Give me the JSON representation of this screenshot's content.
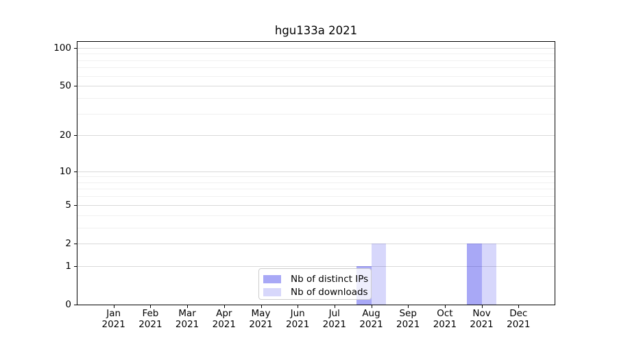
{
  "chart_data": {
    "type": "bar",
    "title": "hgu133a 2021",
    "months": [
      "Jan",
      "Feb",
      "Mar",
      "Apr",
      "May",
      "Jun",
      "Jul",
      "Aug",
      "Sep",
      "Oct",
      "Nov",
      "Dec"
    ],
    "year": "2021",
    "series": [
      {
        "name": "Nb of distinct IPs",
        "fill": "rgba(0,0,230,0.34)",
        "apparent_color": "#a8a8f7",
        "values": [
          0,
          0,
          0,
          0,
          0,
          0,
          0,
          1,
          0,
          0,
          2,
          0
        ]
      },
      {
        "name": "Nb of downloads",
        "fill": "rgba(0,0,230,0.155)",
        "apparent_color": "#d7d7fb",
        "values": [
          0,
          0,
          0,
          0,
          0,
          0,
          0,
          2,
          0,
          0,
          2,
          0
        ]
      }
    ],
    "y_scale": "log1p",
    "y_ticks": [
      0,
      1,
      2,
      5,
      10,
      20,
      50,
      100
    ],
    "y_minor_ticks": [
      3,
      4,
      6,
      7,
      8,
      9,
      30,
      40,
      60,
      70,
      80,
      90
    ],
    "ylim": [
      0,
      113
    ],
    "xlabel": "",
    "ylabel": "",
    "grid": "horizontal major+minor",
    "legend_location": "lower center"
  },
  "colors": {
    "grid_major": "#d9d9d9",
    "grid_minor": "#f0f0f0",
    "axis": "#000000",
    "legend_border": "#cccccc"
  }
}
